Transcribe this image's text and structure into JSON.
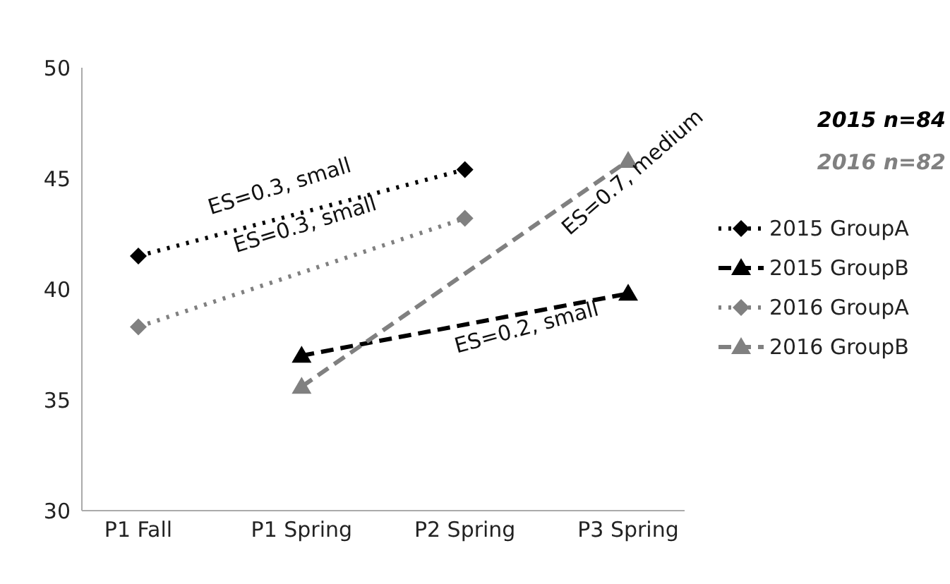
{
  "chart_data": {
    "type": "line",
    "categories": [
      "P1 Fall",
      "P1 Spring",
      "P2 Spring",
      "P3 Spring"
    ],
    "series": [
      {
        "name": "2015 GroupA",
        "color": "#000000",
        "values": [
          41.5,
          null,
          45.4,
          null
        ],
        "line_style": "dotted",
        "marker": "diamond"
      },
      {
        "name": "2015 GroupB",
        "color": "#000000",
        "values": [
          null,
          37.0,
          null,
          39.8
        ],
        "line_style": "dashed",
        "marker": "triangle"
      },
      {
        "name": "2016 GroupA",
        "color": "#808080",
        "values": [
          38.3,
          null,
          43.2,
          null
        ],
        "line_style": "dotted",
        "marker": "diamond"
      },
      {
        "name": "2016 GroupB",
        "color": "#808080",
        "values": [
          null,
          35.6,
          null,
          45.8
        ],
        "line_style": "dashed",
        "marker": "triangle"
      }
    ],
    "ylim": [
      30,
      50
    ],
    "yticks": [
      30,
      35,
      40,
      45,
      50
    ],
    "grid": false,
    "legend": "right",
    "annotations": [
      "ES=0.3, small",
      "ES=0.3, small",
      "ES=0.7, medium",
      "ES=0.2, small",
      "2015 n=84",
      "2016 n=82"
    ]
  }
}
